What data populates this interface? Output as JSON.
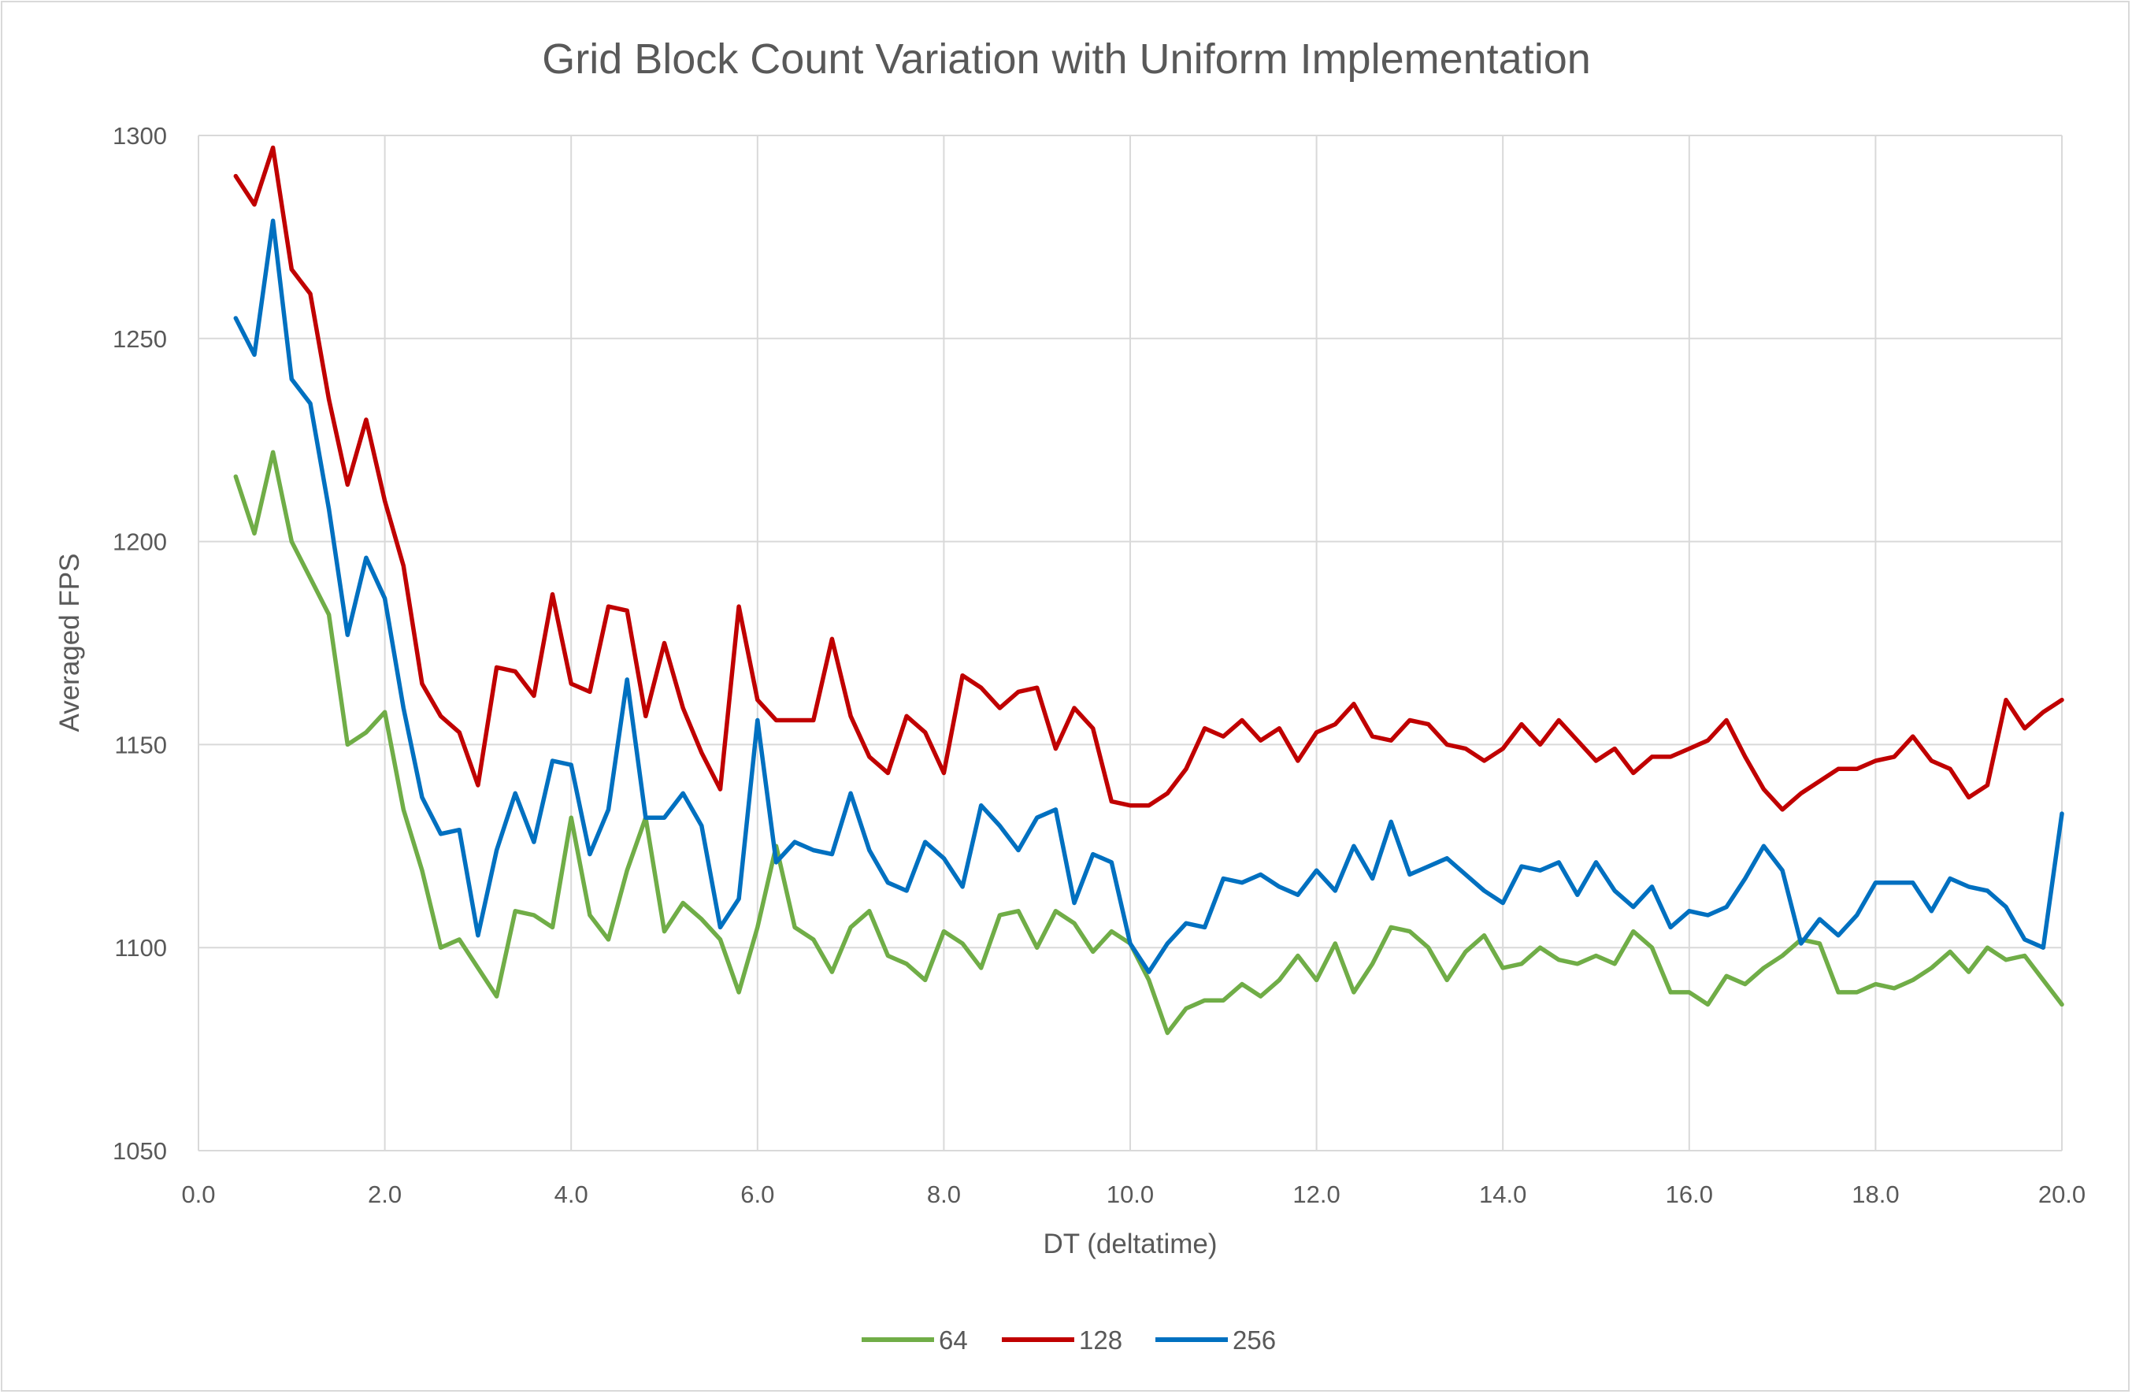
{
  "chart_data": {
    "type": "line",
    "title": "Grid Block Count Variation with Uniform Implementation",
    "xlabel": "DT (deltatime)",
    "ylabel": "Averaged FPS",
    "xlim": [
      0,
      20
    ],
    "ylim": [
      1050,
      1300
    ],
    "x_ticks": [
      "0.0",
      "2.0",
      "4.0",
      "6.0",
      "8.0",
      "10.0",
      "12.0",
      "14.0",
      "16.0",
      "18.0",
      "20.0"
    ],
    "y_ticks": [
      "1050",
      "1100",
      "1150",
      "1200",
      "1250",
      "1300"
    ],
    "grid": true,
    "legend_position": "bottom",
    "x": [
      0.4,
      0.6,
      0.8,
      1.0,
      1.2,
      1.4,
      1.6,
      1.8,
      2.0,
      2.2,
      2.4,
      2.6,
      2.8,
      3.0,
      3.2,
      3.4,
      3.6,
      3.8,
      4.0,
      4.2,
      4.4,
      4.6,
      4.8,
      5.0,
      5.2,
      5.4,
      5.6,
      5.8,
      6.0,
      6.2,
      6.4,
      6.6,
      6.8,
      7.0,
      7.2,
      7.4,
      7.6,
      7.8,
      8.0,
      8.2,
      8.4,
      8.6,
      8.8,
      9.0,
      9.2,
      9.4,
      9.6,
      9.8,
      10.0,
      10.2,
      10.4,
      10.6,
      10.8,
      11.0,
      11.2,
      11.4,
      11.6,
      11.8,
      12.0,
      12.2,
      12.4,
      12.6,
      12.8,
      13.0,
      13.2,
      13.4,
      13.6,
      13.8,
      14.0,
      14.2,
      14.4,
      14.6,
      14.8,
      15.0,
      15.2,
      15.4,
      15.6,
      15.8,
      16.0,
      16.2,
      16.4,
      16.6,
      16.8,
      17.0,
      17.2,
      17.4,
      17.6,
      17.8,
      18.0,
      18.2,
      18.4,
      18.6,
      18.8,
      19.0,
      19.2,
      19.4,
      19.6,
      19.8,
      20.0
    ],
    "series": [
      {
        "name": "64",
        "color": "#70ad47",
        "values": [
          1216,
          1202,
          1222,
          1200,
          1191,
          1182,
          1150,
          1153,
          1158,
          1134,
          1119,
          1100,
          1102,
          1095,
          1088,
          1109,
          1108,
          1105,
          1132,
          1108,
          1102,
          1119,
          1132,
          1104,
          1111,
          1107,
          1102,
          1089,
          1105,
          1125,
          1105,
          1102,
          1094,
          1105,
          1109,
          1098,
          1096,
          1092,
          1104,
          1101,
          1095,
          1108,
          1109,
          1100,
          1109,
          1106,
          1099,
          1104,
          1101,
          1092,
          1079,
          1085,
          1087,
          1087,
          1091,
          1088,
          1092,
          1098,
          1092,
          1101,
          1089,
          1096,
          1105,
          1104,
          1100,
          1092,
          1099,
          1103,
          1095,
          1096,
          1100,
          1097,
          1096,
          1098,
          1096,
          1104,
          1100,
          1089,
          1089,
          1086,
          1093,
          1091,
          1095,
          1098,
          1102,
          1101,
          1089,
          1089,
          1091,
          1090,
          1092,
          1095,
          1099,
          1094,
          1100,
          1097,
          1098,
          1092,
          1086
        ]
      },
      {
        "name": "128",
        "color": "#c00000",
        "values": [
          1290,
          1283,
          1297,
          1267,
          1261,
          1235,
          1214,
          1230,
          1210,
          1194,
          1165,
          1157,
          1153,
          1140,
          1169,
          1168,
          1162,
          1187,
          1165,
          1163,
          1184,
          1183,
          1157,
          1175,
          1159,
          1148,
          1139,
          1184,
          1161,
          1156,
          1156,
          1156,
          1176,
          1157,
          1147,
          1143,
          1157,
          1153,
          1143,
          1167,
          1164,
          1159,
          1163,
          1164,
          1149,
          1159,
          1154,
          1136,
          1135,
          1135,
          1138,
          1144,
          1154,
          1152,
          1156,
          1151,
          1154,
          1146,
          1153,
          1155,
          1160,
          1152,
          1151,
          1156,
          1155,
          1150,
          1149,
          1146,
          1149,
          1155,
          1150,
          1156,
          1151,
          1146,
          1149,
          1143,
          1147,
          1147,
          1149,
          1151,
          1156,
          1147,
          1139,
          1134,
          1138,
          1141,
          1144,
          1144,
          1146,
          1147,
          1152,
          1146,
          1144,
          1137,
          1140,
          1161,
          1154,
          1158,
          1161
        ]
      },
      {
        "name": "256",
        "color": "#0070c0",
        "values": [
          1255,
          1246,
          1279,
          1240,
          1234,
          1208,
          1177,
          1196,
          1186,
          1159,
          1137,
          1128,
          1129,
          1103,
          1124,
          1138,
          1126,
          1146,
          1145,
          1123,
          1134,
          1166,
          1132,
          1132,
          1138,
          1130,
          1105,
          1112,
          1156,
          1121,
          1126,
          1124,
          1123,
          1138,
          1124,
          1116,
          1114,
          1126,
          1122,
          1115,
          1135,
          1130,
          1124,
          1132,
          1134,
          1111,
          1123,
          1121,
          1101,
          1094,
          1101,
          1106,
          1105,
          1117,
          1116,
          1118,
          1115,
          1113,
          1119,
          1114,
          1125,
          1117,
          1131,
          1118,
          1120,
          1122,
          1118,
          1114,
          1111,
          1120,
          1119,
          1121,
          1113,
          1121,
          1114,
          1110,
          1115,
          1105,
          1109,
          1108,
          1110,
          1117,
          1125,
          1119,
          1101,
          1107,
          1103,
          1108,
          1116,
          1116,
          1116,
          1109,
          1117,
          1115,
          1114,
          1110,
          1102,
          1100,
          1133
        ]
      }
    ]
  }
}
